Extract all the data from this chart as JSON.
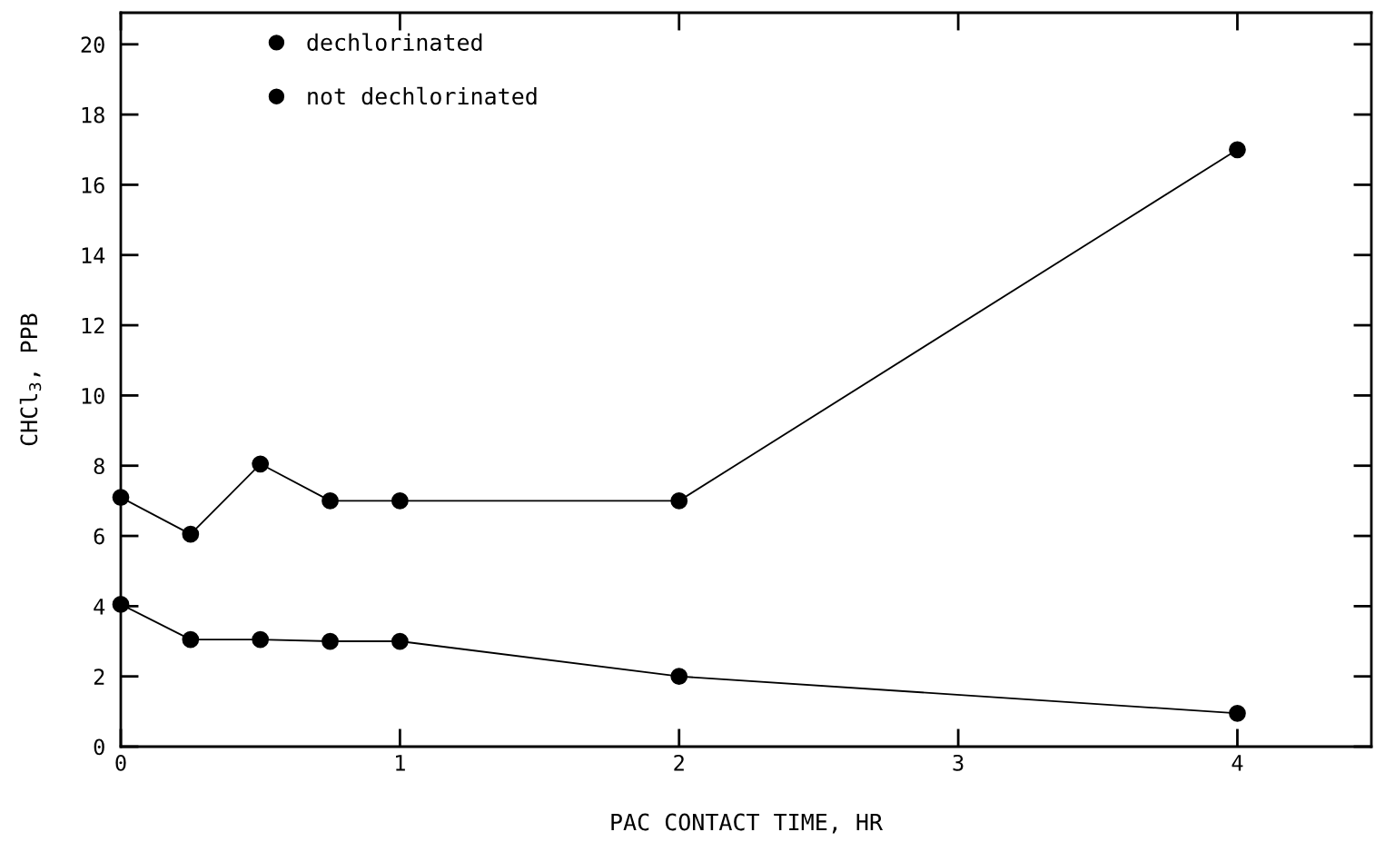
{
  "chart_data": {
    "type": "line",
    "xlabel": "PAC CONTACT TIME, HR",
    "ylabel": "CHCl$_{3}$, PPB",
    "xlim": [
      0,
      4.48
    ],
    "xticks": [
      0,
      1,
      2,
      3,
      4
    ],
    "ylim": [
      0,
      20.9
    ],
    "yticks": [
      0,
      2,
      4,
      6,
      8,
      10,
      12,
      14,
      16,
      18,
      20
    ],
    "grid": false,
    "legend": "top left",
    "marker": "circle",
    "line_style": "solid",
    "series": [
      {
        "name": "dechlorinated",
        "color": "#000000",
        "x": [
          0,
          0.25,
          0.5,
          0.75,
          1,
          2,
          4
        ],
        "values": [
          4.05,
          3.05,
          3.05,
          3.0,
          3.0,
          2.0,
          0.95
        ]
      },
      {
        "name": "not dechlorinated",
        "color": "#000000",
        "x": [
          0,
          0.25,
          0.5,
          0.75,
          1,
          2,
          4
        ],
        "values": [
          7.1,
          6.05,
          8.05,
          7.0,
          7.0,
          7.0,
          17.0
        ]
      }
    ]
  }
}
